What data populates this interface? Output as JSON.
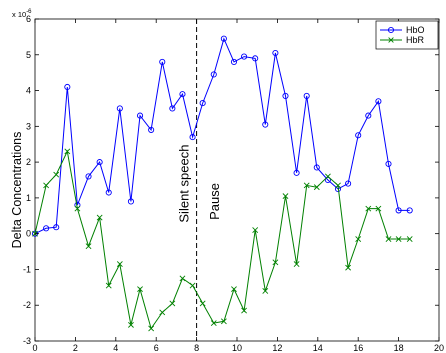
{
  "chart_data": {
    "type": "line",
    "title": "",
    "xlabel": "",
    "ylabel": "Delta Concentrations",
    "y_multiplier_label": "x 10",
    "y_multiplier_exponent": "-6",
    "xlim": [
      0,
      20
    ],
    "ylim": [
      -3,
      6
    ],
    "xticks": [
      "0",
      "2",
      "4",
      "6",
      "8",
      "10",
      "12",
      "14",
      "16",
      "18",
      "20"
    ],
    "yticks": [
      "-3",
      "-2",
      "-1",
      "0",
      "1",
      "2",
      "3",
      "4",
      "5",
      "6"
    ],
    "grid": false,
    "legend_position": "top-right",
    "vline_x": 8,
    "annotations": [
      {
        "text": "Silent speech",
        "x": 7.6,
        "y": 1.4
      },
      {
        "text": "Pause",
        "x": 9.1,
        "y": 0.9
      }
    ],
    "series": [
      {
        "name": "HbO",
        "color": "#0000ff",
        "marker": "circle",
        "x": [
          0,
          0.55,
          1.05,
          1.6,
          2.1,
          2.65,
          3.2,
          3.65,
          4.2,
          4.75,
          5.2,
          5.75,
          6.3,
          6.8,
          7.3,
          7.8,
          8.3,
          8.85,
          9.35,
          9.85,
          10.35,
          10.9,
          11.4,
          11.9,
          12.4,
          12.95,
          13.45,
          13.95,
          14.5,
          15.0,
          15.5,
          16.0,
          16.5,
          17.0,
          17.5,
          18.0,
          18.55
        ],
        "y": [
          0,
          0.15,
          0.18,
          4.1,
          0.8,
          1.6,
          2.0,
          1.15,
          3.5,
          0.9,
          3.3,
          2.9,
          4.8,
          3.5,
          3.9,
          2.7,
          3.65,
          4.45,
          5.45,
          4.8,
          4.95,
          4.9,
          3.05,
          5.05,
          3.85,
          1.7,
          3.85,
          1.85,
          1.5,
          1.25,
          1.4,
          2.75,
          3.3,
          3.7,
          1.95,
          0.65,
          0.65
        ]
      },
      {
        "name": "HbR",
        "color": "#008000",
        "marker": "x",
        "x": [
          0,
          0.55,
          1.05,
          1.6,
          2.1,
          2.65,
          3.2,
          3.65,
          4.2,
          4.75,
          5.2,
          5.75,
          6.3,
          6.8,
          7.3,
          7.8,
          8.3,
          8.85,
          9.35,
          9.85,
          10.35,
          10.9,
          11.4,
          11.9,
          12.4,
          12.95,
          13.45,
          13.95,
          14.5,
          15.0,
          15.5,
          16.0,
          16.5,
          17.0,
          17.5,
          18.0,
          18.55
        ],
        "y": [
          0,
          1.35,
          1.65,
          2.3,
          0.7,
          -0.35,
          0.45,
          -1.45,
          -0.85,
          -2.55,
          -1.55,
          -2.65,
          -2.2,
          -1.95,
          -1.25,
          -1.45,
          -1.95,
          -2.5,
          -2.45,
          -1.55,
          -2.15,
          0.1,
          -1.6,
          -0.8,
          1.05,
          -0.85,
          1.35,
          1.3,
          1.6,
          1.35,
          -0.95,
          -0.15,
          0.7,
          0.7,
          -0.15,
          -0.15,
          -0.15
        ]
      }
    ]
  }
}
